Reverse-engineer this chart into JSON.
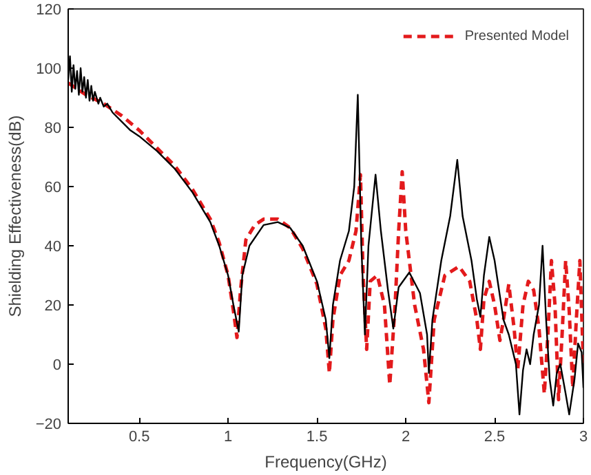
{
  "chart_data": {
    "type": "line",
    "xlabel": "Frequency(GHz)",
    "ylabel": "Shielding Effectiveness(dB)",
    "xlim": [
      0.1,
      3
    ],
    "ylim": [
      -20,
      120
    ],
    "xticks": [
      0.5,
      1,
      1.5,
      2,
      2.5,
      3
    ],
    "yticks": [
      -20,
      0,
      20,
      40,
      60,
      80,
      100,
      120
    ],
    "grid": false,
    "legend": "top right",
    "series": [
      {
        "name": "Presented Model",
        "color": "#e31a1c",
        "line_style": "dashed",
        "x": [
          0.1,
          0.2,
          0.3,
          0.4,
          0.5,
          0.6,
          0.7,
          0.8,
          0.9,
          0.95,
          1.0,
          1.03,
          1.05,
          1.07,
          1.1,
          1.15,
          1.2,
          1.28,
          1.35,
          1.42,
          1.5,
          1.55,
          1.57,
          1.59,
          1.63,
          1.68,
          1.72,
          1.745,
          1.76,
          1.78,
          1.8,
          1.84,
          1.88,
          1.91,
          1.94,
          1.96,
          1.98,
          2.0,
          2.05,
          2.1,
          2.13,
          2.16,
          2.22,
          2.3,
          2.36,
          2.4,
          2.42,
          2.44,
          2.47,
          2.5,
          2.53,
          2.55,
          2.58,
          2.61,
          2.63,
          2.66,
          2.69,
          2.72,
          2.75,
          2.78,
          2.8,
          2.82,
          2.84,
          2.86,
          2.88,
          2.9,
          2.92,
          2.94,
          2.96,
          2.98,
          3.0
        ],
        "values": [
          95,
          91,
          88,
          84,
          79,
          73,
          67,
          59,
          49,
          41,
          30,
          18,
          9,
          25,
          42,
          47,
          49,
          49,
          46,
          39,
          27,
          12,
          -3,
          15,
          30,
          35,
          45,
          64,
          30,
          5,
          28,
          30,
          20,
          -7,
          20,
          45,
          65,
          45,
          20,
          5,
          -13,
          15,
          30,
          33,
          28,
          15,
          5,
          22,
          28,
          20,
          8,
          15,
          27,
          12,
          -2,
          20,
          28,
          25,
          12,
          -10,
          10,
          35,
          20,
          -12,
          10,
          35,
          18,
          -8,
          15,
          35,
          0
        ]
      },
      {
        "color": "#000000",
        "line_style": "solid",
        "x": [
          0.1,
          0.11,
          0.12,
          0.13,
          0.14,
          0.15,
          0.16,
          0.17,
          0.18,
          0.19,
          0.2,
          0.21,
          0.22,
          0.23,
          0.24,
          0.25,
          0.27,
          0.28,
          0.3,
          0.32,
          0.35,
          0.4,
          0.45,
          0.5,
          0.6,
          0.7,
          0.8,
          0.9,
          0.95,
          1.0,
          1.03,
          1.06,
          1.08,
          1.12,
          1.2,
          1.28,
          1.35,
          1.42,
          1.5,
          1.55,
          1.57,
          1.59,
          1.63,
          1.68,
          1.71,
          1.73,
          1.75,
          1.77,
          1.79,
          1.83,
          1.86,
          1.9,
          1.93,
          1.96,
          2.02,
          2.08,
          2.12,
          2.13,
          2.15,
          2.2,
          2.25,
          2.29,
          2.32,
          2.37,
          2.4,
          2.42,
          2.44,
          2.47,
          2.5,
          2.55,
          2.58,
          2.62,
          2.64,
          2.66,
          2.68,
          2.7,
          2.72,
          2.75,
          2.77,
          2.79,
          2.81,
          2.83,
          2.85,
          2.87,
          2.9,
          2.92,
          2.95,
          2.97,
          2.99,
          3.0
        ],
        "values": [
          96,
          104,
          92,
          101,
          93,
          99,
          91,
          100,
          92,
          97,
          90,
          96,
          89,
          94,
          89,
          92,
          88,
          90,
          87,
          88,
          85,
          82,
          79,
          77,
          72,
          66,
          58,
          48,
          40,
          30,
          20,
          11,
          30,
          40,
          47,
          48,
          46,
          40,
          28,
          15,
          2,
          20,
          35,
          45,
          60,
          91,
          40,
          10,
          40,
          64,
          45,
          25,
          12,
          26,
          31,
          24,
          10,
          -3,
          15,
          35,
          50,
          69,
          50,
          35,
          22,
          16,
          30,
          43,
          35,
          15,
          10,
          0,
          -17,
          -2,
          5,
          0,
          10,
          20,
          40,
          15,
          -5,
          -14,
          -3,
          0,
          -10,
          -17,
          -5,
          7,
          4,
          -8
        ]
      }
    ]
  }
}
